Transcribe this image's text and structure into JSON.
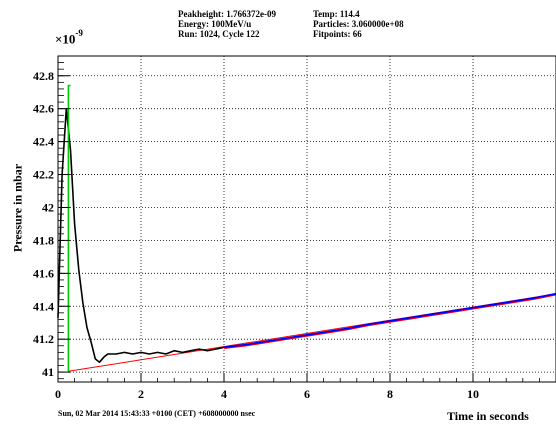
{
  "header": {
    "peakheight": "Peakheight: 1.766372e-09",
    "energy": "Energy: 100MeV/u",
    "run": "Run: 1024, Cycle 122",
    "temp": "Temp: 114.4",
    "particles": "Particles: 3.060000e+08",
    "fitpoints": "Fitpoints: 66"
  },
  "footer": "Sun, 02 Mar 2014 15:43:33 +0100 (CET) +608000000 nsec",
  "colors": {
    "measured": "#000000",
    "fit": "#ff0000",
    "fit_region": "#0000ff",
    "peak_marker": "#00cc00",
    "grid": "#000000"
  },
  "chart_data": {
    "type": "line",
    "xlabel": "Time in seconds",
    "ylabel": "Pressure in mbar",
    "y_multiplier": "×10",
    "y_exponent": "-9",
    "xlim": [
      0,
      12
    ],
    "ylim": [
      40.94,
      42.92
    ],
    "grid": true,
    "x_ticks": [
      0,
      2,
      4,
      6,
      8,
      10
    ],
    "x_tick_labels": [
      "0",
      "2",
      "4",
      "6",
      "8",
      "10"
    ],
    "y_ticks": [
      41,
      41.2,
      41.4,
      41.6,
      41.8,
      42,
      42.2,
      42.4,
      42.6,
      42.8
    ],
    "y_tick_labels": [
      "41",
      "41.2",
      "41.4",
      "41.6",
      "41.8",
      "42",
      "42.2",
      "42.4",
      "42.6",
      "42.8"
    ],
    "series": [
      {
        "role": "measured",
        "x": [
          0.0,
          0.1,
          0.2,
          0.3,
          0.4,
          0.5,
          0.6,
          0.7,
          0.8,
          0.9,
          1.0,
          1.1,
          1.2,
          1.4,
          1.6,
          1.8,
          2.0,
          2.2,
          2.4,
          2.6,
          2.8,
          3.0,
          3.2,
          3.4,
          3.6,
          3.8,
          4.0
        ],
        "y": [
          41.33,
          42.2,
          42.6,
          42.35,
          41.9,
          41.62,
          41.42,
          41.27,
          41.18,
          41.08,
          41.06,
          41.09,
          41.11,
          41.11,
          41.12,
          41.11,
          41.12,
          41.11,
          41.12,
          41.11,
          41.13,
          41.12,
          41.13,
          41.14,
          41.13,
          41.14,
          41.15
        ]
      },
      {
        "role": "fit",
        "x": [
          0.25,
          12.0
        ],
        "y": [
          41.005,
          41.475
        ]
      },
      {
        "role": "fit_region",
        "x": [
          4.0,
          4.5,
          5.0,
          5.5,
          6.0,
          6.5,
          7.0,
          7.5,
          8.0,
          8.5,
          9.0,
          9.5,
          10.0,
          10.5,
          11.0,
          11.5,
          12.0
        ],
        "y": [
          41.15,
          41.165,
          41.185,
          41.205,
          41.225,
          41.245,
          41.265,
          41.29,
          41.31,
          41.33,
          41.35,
          41.37,
          41.39,
          41.41,
          41.43,
          41.45,
          41.475
        ]
      },
      {
        "role": "peak_marker",
        "x": [
          0.25,
          0.25,
          0.3
        ],
        "y": [
          41.0,
          42.74,
          42.74
        ]
      }
    ]
  }
}
